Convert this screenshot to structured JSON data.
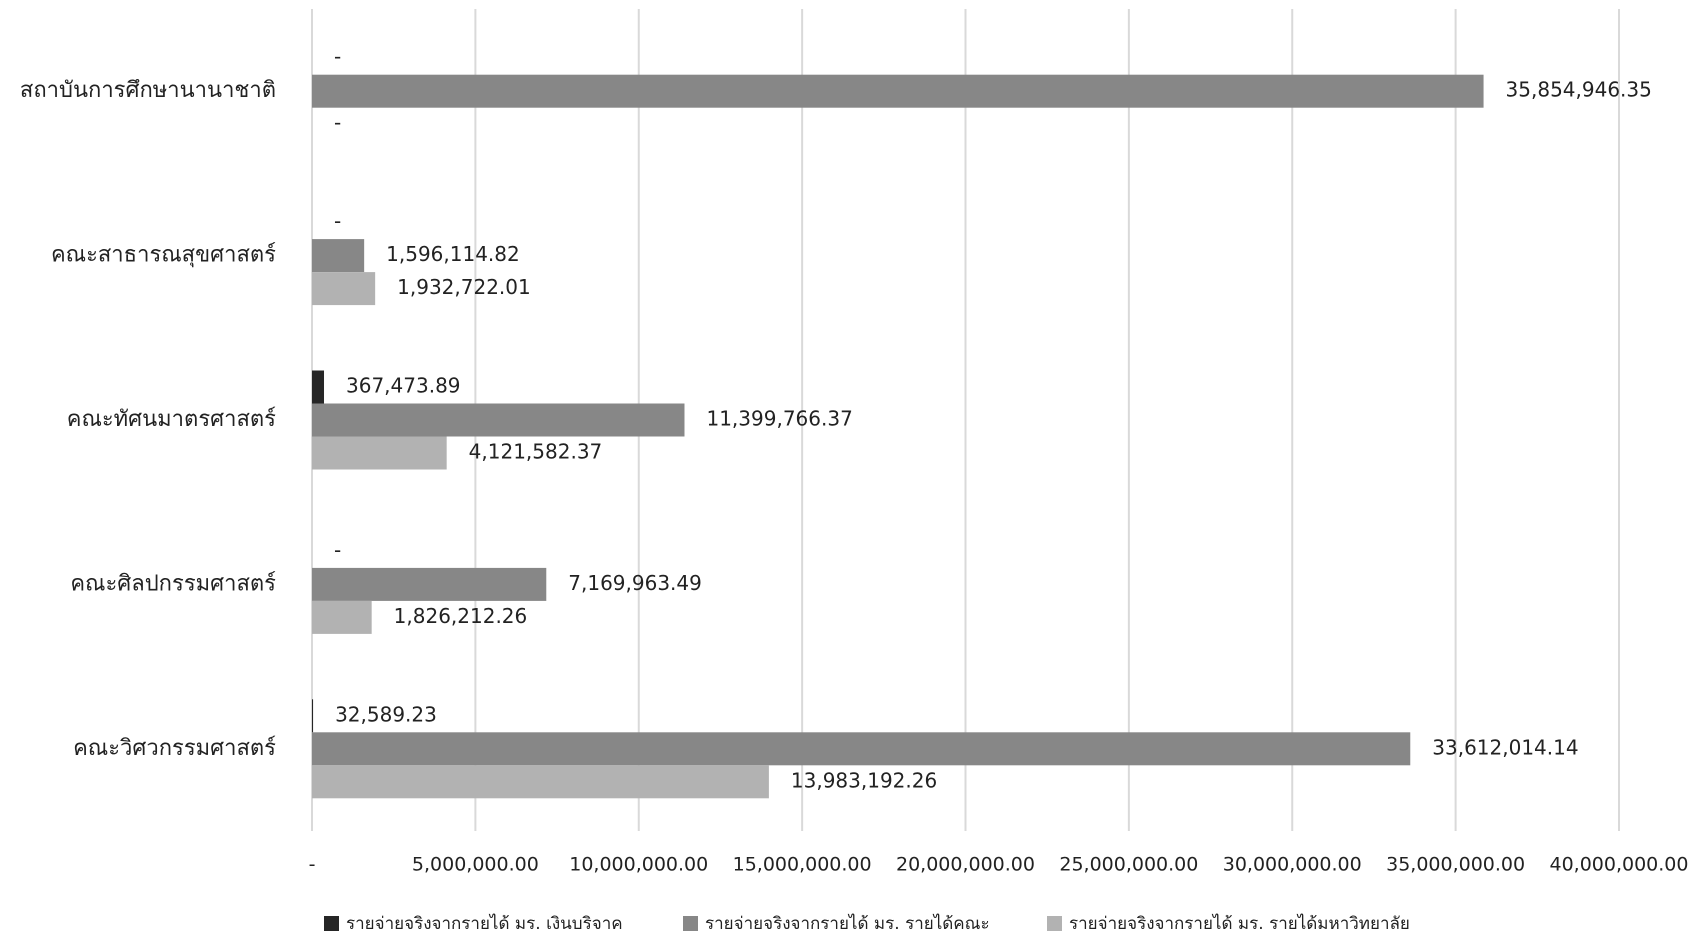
{
  "chart_data": {
    "type": "hbar",
    "categories": [
      "สถาบันการศึกษานานาชาติ",
      "คณะสาธารณสุขศาสตร์",
      "คณะทัศนมาตรศาสตร์",
      "คณะศิลปกรรมศาสตร์",
      "คณะวิศวกรรมศาสตร์"
    ],
    "series": [
      {
        "name": "รายจ่ายจริงจากรายได้ มร. เงินบริจาค",
        "color": "#262626",
        "values": [
          0,
          0,
          367473.89,
          0,
          32589.23
        ],
        "value_labels": [
          "-",
          "-",
          "367,473.89",
          "-",
          "32,589.23"
        ]
      },
      {
        "name": "รายจ่ายจริงจากรายได้ มร. รายได้คณะ",
        "color": "#878787",
        "values": [
          35854946.35,
          1596114.82,
          11399766.37,
          7169963.49,
          33612014.14
        ],
        "value_labels": [
          "35,854,946.35",
          "1,596,114.82",
          "11,399,766.37",
          "7,169,963.49",
          "33,612,014.14"
        ]
      },
      {
        "name": "รายจ่ายจริงจากรายได้ มร. รายได้มหาวิทยาลัย",
        "color": "#b2b2b2",
        "values": [
          0,
          1932722.01,
          4121582.37,
          1826212.26,
          13983192.26
        ],
        "value_labels": [
          "-",
          "1,932,722.01",
          "4,121,582.37",
          "1,826,212.26",
          "13,983,192.26"
        ]
      }
    ],
    "xlim": [
      0,
      40000000
    ],
    "xticks": [
      {
        "value": 0,
        "label": "-"
      },
      {
        "value": 5000000,
        "label": "5,000,000.00"
      },
      {
        "value": 10000000,
        "label": "10,000,000.00"
      },
      {
        "value": 15000000,
        "label": "15,000,000.00"
      },
      {
        "value": 20000000,
        "label": "20,000,000.00"
      },
      {
        "value": 25000000,
        "label": "25,000,000.00"
      },
      {
        "value": 30000000,
        "label": "30,000,000.00"
      },
      {
        "value": 35000000,
        "label": "35,000,000.00"
      },
      {
        "value": 40000000,
        "label": "40,000,000.00"
      }
    ],
    "grid": true,
    "legend": "bottom"
  }
}
